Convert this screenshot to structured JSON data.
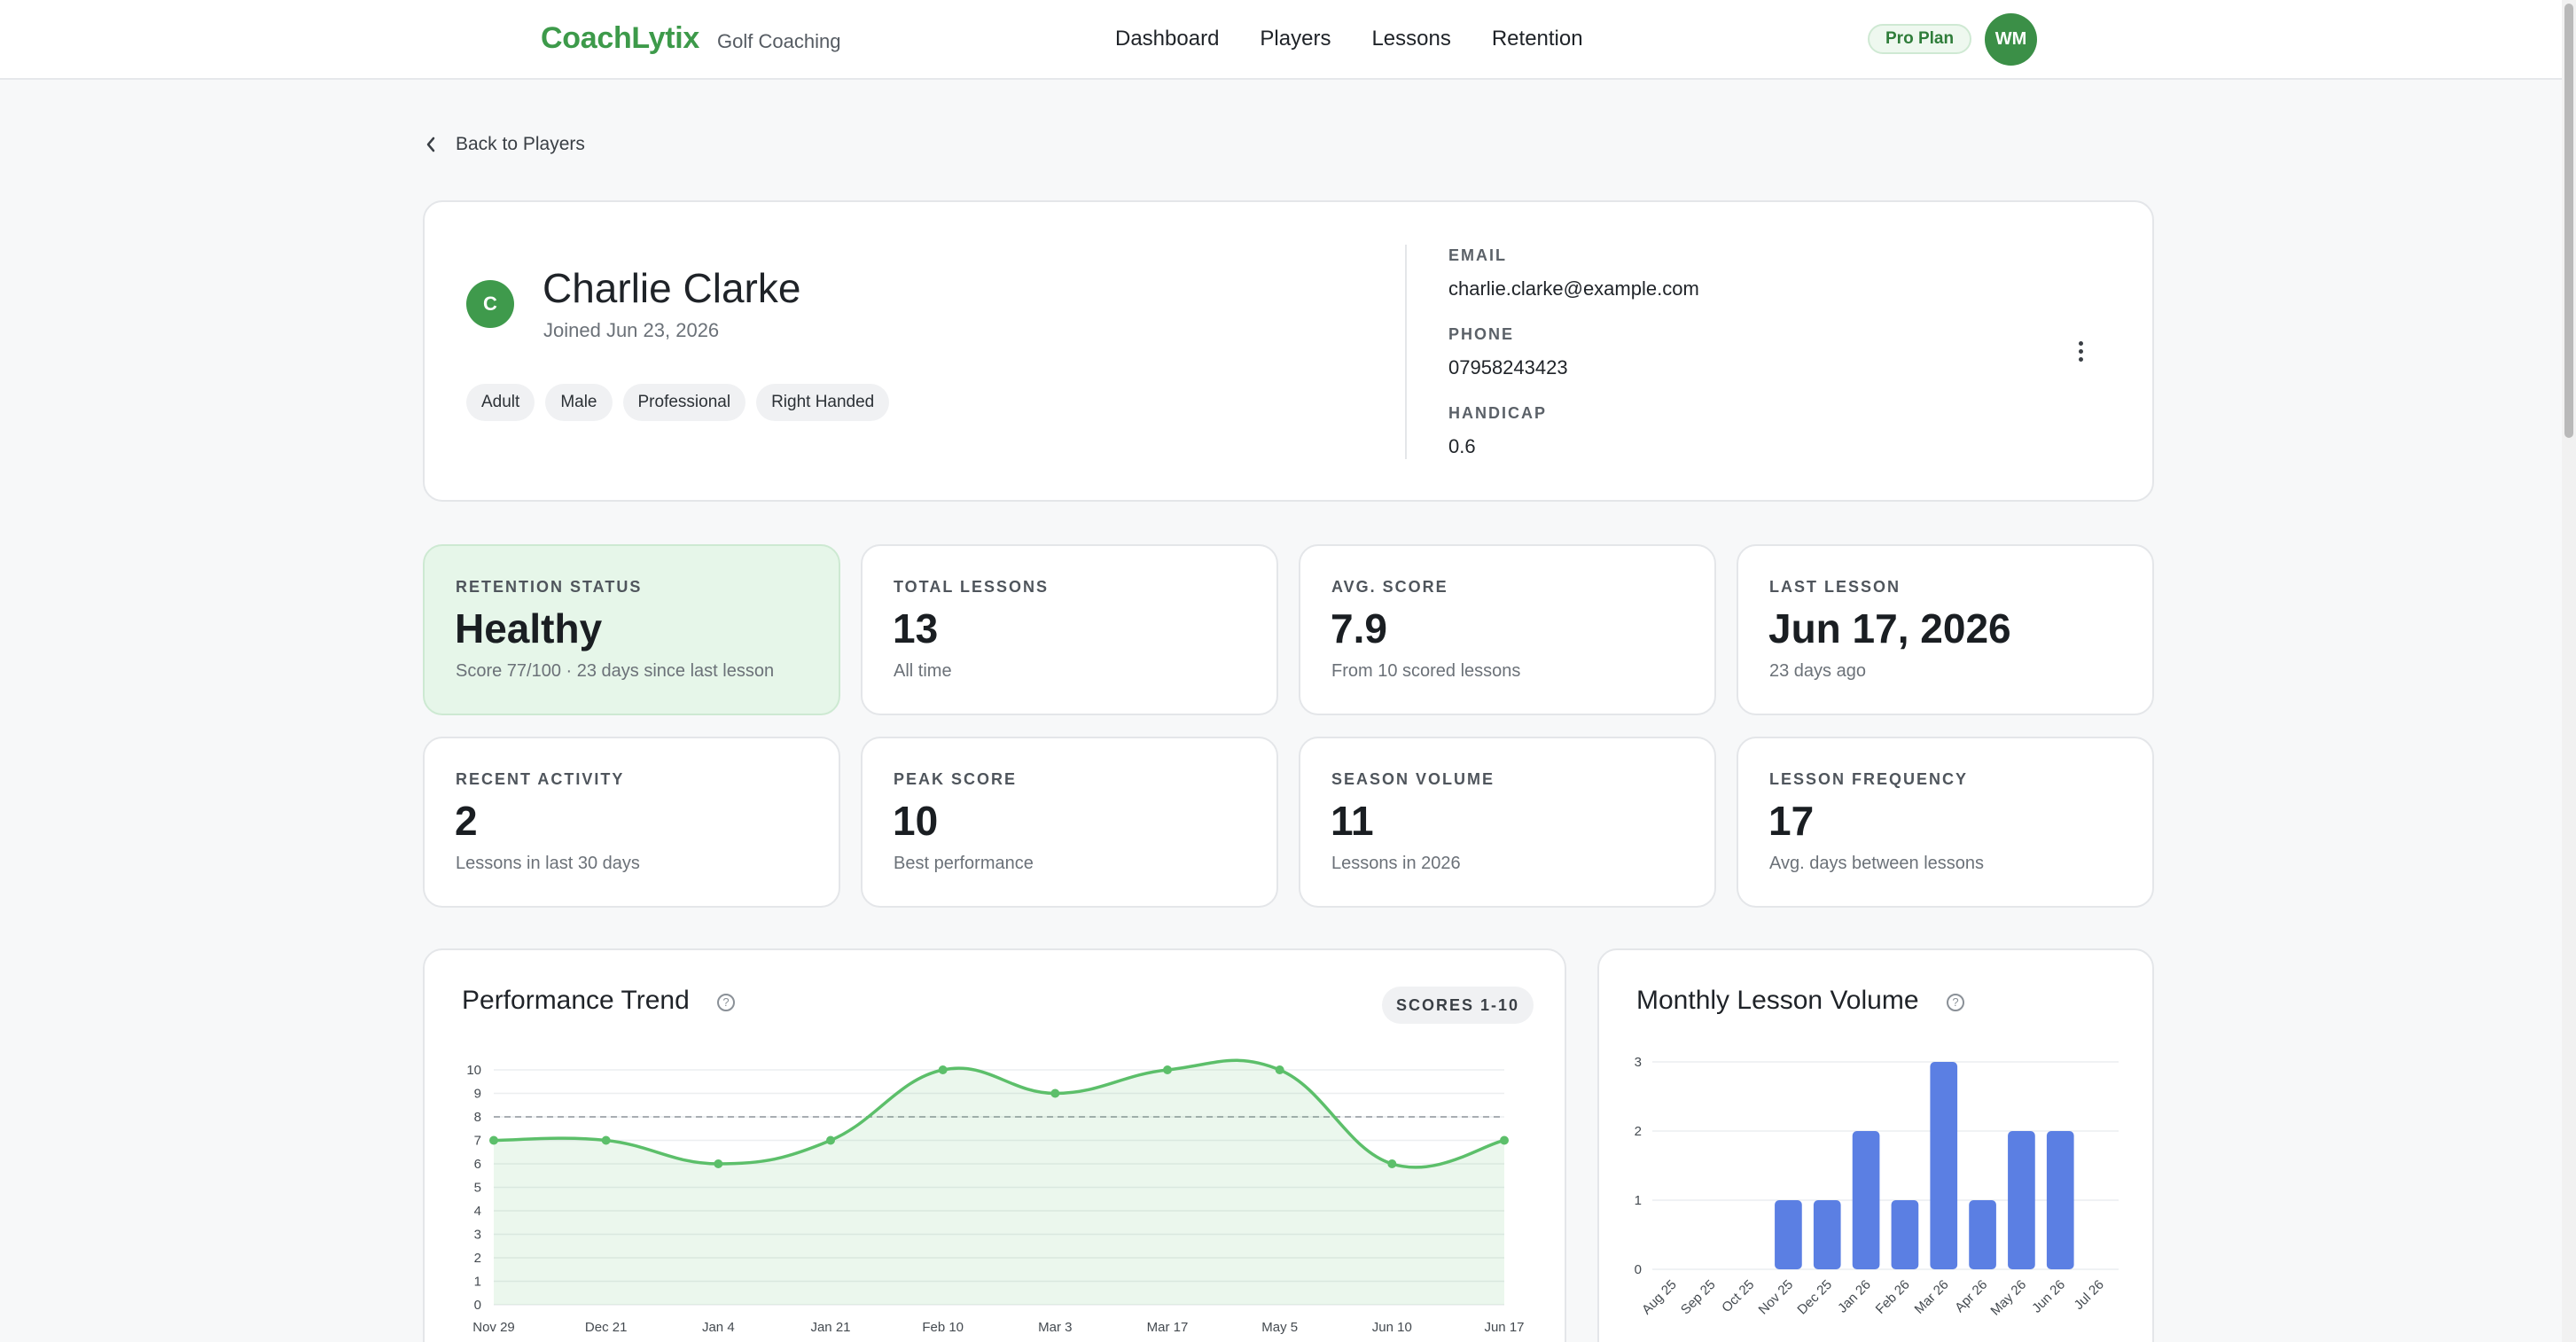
{
  "header": {
    "brand": "CoachLytix",
    "subtitle": "Golf Coaching",
    "nav": [
      "Dashboard",
      "Players",
      "Lessons",
      "Retention"
    ],
    "plan": "Pro Plan",
    "user_initials": "WM"
  },
  "back_label": "Back to Players",
  "profile": {
    "initial": "C",
    "name": "Charlie Clarke",
    "joined": "Joined Jun 23, 2026",
    "tags": [
      "Adult",
      "Male",
      "Professional",
      "Right Handed"
    ],
    "email_label": "EMAIL",
    "email": "charlie.clarke@example.com",
    "phone_label": "PHONE",
    "phone": "07958243423",
    "handicap_label": "HANDICAP",
    "handicap": "0.6"
  },
  "stats": [
    {
      "label": "RETENTION STATUS",
      "value": "Healthy",
      "sub": "Score 77/100 · 23 days since last lesson"
    },
    {
      "label": "TOTAL LESSONS",
      "value": "13",
      "sub": "All time"
    },
    {
      "label": "AVG. SCORE",
      "value": "7.9",
      "sub": "From 10 scored lessons"
    },
    {
      "label": "LAST LESSON",
      "value": "Jun 17, 2026",
      "sub": "23 days ago"
    },
    {
      "label": "RECENT ACTIVITY",
      "value": "2",
      "sub": "Lessons in last 30 days"
    },
    {
      "label": "PEAK SCORE",
      "value": "10",
      "sub": "Best performance"
    },
    {
      "label": "SEASON VOLUME",
      "value": "11",
      "sub": "Lessons in 2026"
    },
    {
      "label": "LESSON FREQUENCY",
      "value": "17",
      "sub": "Avg. days between lessons"
    }
  ],
  "perf_card": {
    "title": "Performance Trend",
    "badge": "SCORES 1-10"
  },
  "monthly_card": {
    "title": "Monthly Lesson Volume"
  },
  "colors": {
    "brand": "#3d9a4a",
    "line": "#5cbf6a",
    "bar": "#5b7fe3",
    "healthy_bg": "#e6f6e9"
  },
  "chart_data": [
    {
      "type": "line",
      "title": "Performance Trend",
      "x": [
        "Nov 29",
        "Dec 21",
        "Jan 4",
        "Jan 21",
        "Feb 10",
        "Mar 3",
        "Mar 17",
        "May 5",
        "Jun 10",
        "Jun 17"
      ],
      "series": [
        {
          "values": [
            7,
            7,
            6,
            7,
            10,
            9,
            10,
            10,
            6,
            7
          ]
        }
      ],
      "reference_line": 8,
      "ylim": [
        0,
        10
      ],
      "yticks": [
        0,
        1,
        2,
        3,
        4,
        5,
        6,
        7,
        8,
        9,
        10
      ],
      "grid": true
    },
    {
      "type": "bar",
      "title": "Monthly Lesson Volume",
      "categories": [
        "Aug 25",
        "Sep 25",
        "Oct 25",
        "Nov 25",
        "Dec 25",
        "Jan 26",
        "Feb 26",
        "Mar 26",
        "Apr 26",
        "May 26",
        "Jun 26",
        "Jul 26"
      ],
      "values": [
        0,
        0,
        0,
        1,
        1,
        2,
        1,
        3,
        1,
        2,
        2,
        0
      ],
      "ylim": [
        0,
        3
      ],
      "yticks": [
        0,
        1,
        2,
        3
      ],
      "grid": true
    }
  ]
}
